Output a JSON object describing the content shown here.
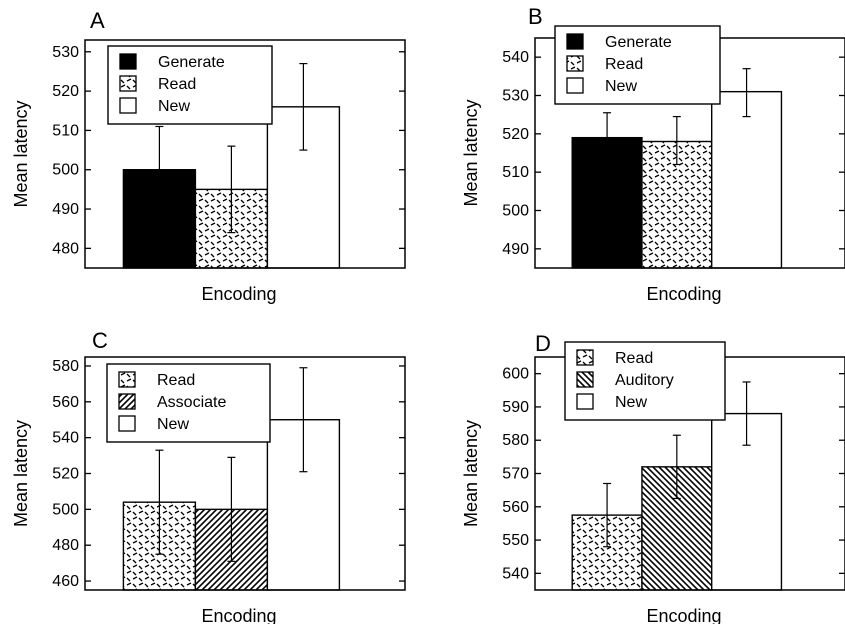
{
  "chart_data": [
    {
      "type": "bar",
      "panel_label": "A",
      "xlabel": "Encoding",
      "ylabel": "Mean latency",
      "ylim": [
        475,
        533
      ],
      "yticks": [
        480,
        490,
        500,
        510,
        520,
        530
      ],
      "series": [
        {
          "name": "Generate",
          "value": 500,
          "err_low": 489,
          "err_high": 511,
          "pattern": "solid"
        },
        {
          "name": "Read",
          "value": 495,
          "err_low": 484,
          "err_high": 506,
          "pattern": "dashes"
        },
        {
          "name": "New",
          "value": 516,
          "err_low": 505,
          "err_high": 527,
          "pattern": "white"
        }
      ],
      "legend": "top-left"
    },
    {
      "type": "bar",
      "panel_label": "B",
      "xlabel": "Encoding",
      "ylabel": "Mean latency",
      "ylim": [
        485,
        545
      ],
      "yticks": [
        490,
        500,
        510,
        520,
        530,
        540
      ],
      "series": [
        {
          "name": "Generate",
          "value": 519,
          "err_low": 513,
          "err_high": 525.5,
          "pattern": "solid"
        },
        {
          "name": "Read",
          "value": 518,
          "err_low": 512,
          "err_high": 524.5,
          "pattern": "dashes"
        },
        {
          "name": "New",
          "value": 531,
          "err_low": 524.5,
          "err_high": 537,
          "pattern": "white"
        }
      ],
      "legend": "top-center"
    },
    {
      "type": "bar",
      "panel_label": "C",
      "xlabel": "Encoding",
      "ylabel": "Mean latency",
      "ylim": [
        455,
        585
      ],
      "yticks": [
        460,
        480,
        500,
        520,
        540,
        560,
        580
      ],
      "series": [
        {
          "name": "Read",
          "value": 504,
          "err_low": 475,
          "err_high": 533,
          "pattern": "dashes"
        },
        {
          "name": "Associate",
          "value": 500,
          "err_low": 471,
          "err_high": 529,
          "pattern": "hatch-right"
        },
        {
          "name": "New",
          "value": 550,
          "err_low": 521,
          "err_high": 579,
          "pattern": "white"
        }
      ],
      "legend": "top-left"
    },
    {
      "type": "bar",
      "panel_label": "D",
      "xlabel": "Encoding",
      "ylabel": "Mean latency",
      "ylim": [
        535,
        605
      ],
      "yticks": [
        540,
        550,
        560,
        570,
        580,
        590,
        600
      ],
      "series": [
        {
          "name": "Read",
          "value": 557.5,
          "err_low": 548,
          "err_high": 567,
          "pattern": "dashes"
        },
        {
          "name": "Auditory",
          "value": 572,
          "err_low": 562.5,
          "err_high": 581.5,
          "pattern": "hatch-left"
        },
        {
          "name": "New",
          "value": 588,
          "err_low": 578.5,
          "err_high": 597.5,
          "pattern": "white"
        }
      ],
      "legend": "top-center"
    }
  ]
}
